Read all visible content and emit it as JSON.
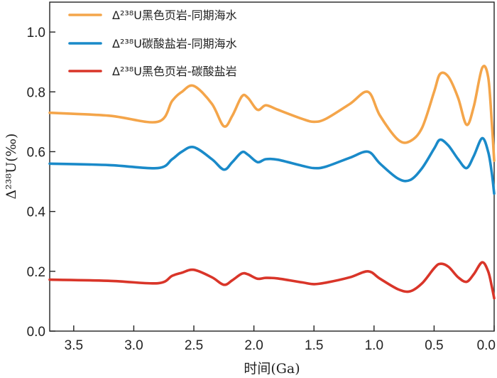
{
  "chart_data": {
    "type": "line",
    "xlabel": "时间(Ga)",
    "ylabel": "Δ²³⁸U(‰)",
    "xlim": [
      3.7,
      0.0
    ],
    "ylim": [
      0.0,
      1.1
    ],
    "x_reversed": true,
    "xticks": [
      "3.5",
      "3.0",
      "2.5",
      "2.0",
      "1.5",
      "1.0",
      "0.5",
      "0.0"
    ],
    "yticks": [
      "0.0",
      "0.2",
      "0.4",
      "0.6",
      "0.8",
      "1.0"
    ],
    "grid": false,
    "legend_position": "top-left",
    "series": [
      {
        "name": "Δ²³⁸U黑色页岩-同期海水",
        "color": "#F4A54A",
        "x": [
          3.7,
          3.2,
          2.8,
          2.68,
          2.6,
          2.5,
          2.35,
          2.25,
          2.18,
          2.1,
          2.05,
          1.97,
          1.9,
          1.8,
          1.6,
          1.5,
          1.4,
          1.2,
          1.05,
          0.95,
          0.8,
          0.7,
          0.6,
          0.5,
          0.45,
          0.38,
          0.3,
          0.23,
          0.17,
          0.1,
          0.05,
          0.02,
          0.0
        ],
        "values": [
          0.73,
          0.72,
          0.7,
          0.77,
          0.8,
          0.82,
          0.76,
          0.685,
          0.72,
          0.785,
          0.78,
          0.74,
          0.755,
          0.74,
          0.71,
          0.7,
          0.71,
          0.76,
          0.8,
          0.72,
          0.64,
          0.635,
          0.68,
          0.8,
          0.86,
          0.85,
          0.78,
          0.69,
          0.75,
          0.88,
          0.85,
          0.7,
          0.57
        ]
      },
      {
        "name": "Δ²³⁸U碳酸盐岩-同期海水",
        "color": "#1A8AC9",
        "x": [
          3.7,
          3.2,
          2.8,
          2.68,
          2.6,
          2.5,
          2.35,
          2.25,
          2.18,
          2.1,
          2.05,
          1.97,
          1.9,
          1.8,
          1.6,
          1.5,
          1.4,
          1.2,
          1.05,
          0.95,
          0.8,
          0.7,
          0.6,
          0.5,
          0.45,
          0.38,
          0.3,
          0.23,
          0.17,
          0.1,
          0.05,
          0.02,
          0.0
        ],
        "values": [
          0.56,
          0.555,
          0.545,
          0.575,
          0.6,
          0.615,
          0.575,
          0.54,
          0.565,
          0.598,
          0.59,
          0.565,
          0.575,
          0.573,
          0.553,
          0.545,
          0.55,
          0.58,
          0.6,
          0.56,
          0.51,
          0.505,
          0.545,
          0.61,
          0.64,
          0.62,
          0.575,
          0.545,
          0.585,
          0.645,
          0.6,
          0.53,
          0.46
        ]
      },
      {
        "name": "Δ²³⁸U黑色页岩-碳酸盐岩",
        "color": "#D93529",
        "x": [
          3.7,
          3.2,
          2.8,
          2.68,
          2.6,
          2.5,
          2.35,
          2.25,
          2.18,
          2.1,
          2.05,
          1.97,
          1.9,
          1.8,
          1.6,
          1.5,
          1.4,
          1.2,
          1.05,
          0.95,
          0.8,
          0.7,
          0.6,
          0.5,
          0.45,
          0.38,
          0.3,
          0.23,
          0.17,
          0.1,
          0.05,
          0.02,
          0.0
        ],
        "values": [
          0.172,
          0.168,
          0.16,
          0.185,
          0.195,
          0.205,
          0.18,
          0.155,
          0.17,
          0.192,
          0.19,
          0.175,
          0.178,
          0.176,
          0.163,
          0.157,
          0.162,
          0.18,
          0.2,
          0.175,
          0.14,
          0.133,
          0.16,
          0.21,
          0.225,
          0.215,
          0.18,
          0.165,
          0.19,
          0.23,
          0.2,
          0.15,
          0.11
        ]
      }
    ]
  }
}
